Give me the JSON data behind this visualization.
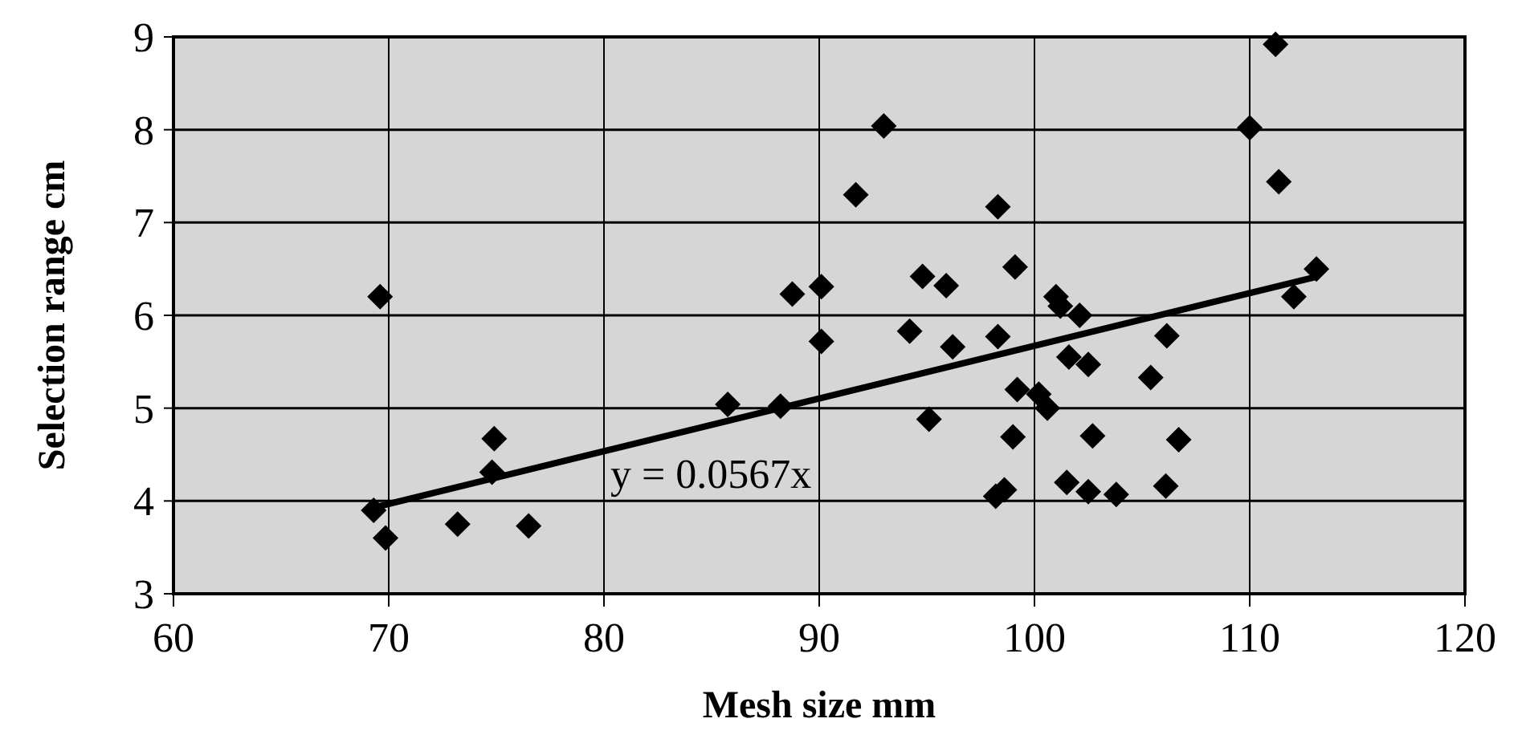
{
  "chart_data": {
    "type": "scatter",
    "xlabel": "Mesh size mm",
    "ylabel": "Selection range cm",
    "xlim": [
      60,
      120
    ],
    "xticks": [
      60,
      70,
      80,
      90,
      100,
      110,
      120
    ],
    "ylim": [
      3,
      9
    ],
    "yticks": [
      3,
      4,
      5,
      6,
      7,
      8,
      9
    ],
    "grid": true,
    "annotations": [
      "y = 0.0567x"
    ],
    "series": [
      {
        "color": "#000000",
        "marker": "diamond",
        "x": [
          69.6,
          69.3,
          69.85,
          73.2,
          74.9,
          74.8,
          76.5,
          85.75,
          88.2,
          88.75,
          90.1,
          90.1,
          91.7,
          93.0,
          94.2,
          94.8,
          95.9,
          95.1,
          96.2,
          98.3,
          99.1,
          98.3,
          99.2,
          100.2,
          100.6,
          99.0,
          98.2,
          98.6,
          101.0,
          101.2,
          101.6,
          101.5,
          111.2,
          110.0,
          111.35,
          113.1,
          112.05,
          102.1,
          106.15,
          102.5,
          105.4,
          102.7,
          106.7,
          102.5,
          103.8,
          106.1
        ],
        "values": [
          6.2,
          3.9,
          3.6,
          3.75,
          4.67,
          4.31,
          3.73,
          5.04,
          5.02,
          6.23,
          6.31,
          5.72,
          7.3,
          8.04,
          5.83,
          6.42,
          6.32,
          4.88,
          5.66,
          7.17,
          6.52,
          5.77,
          5.2,
          5.15,
          5.0,
          4.69,
          4.05,
          4.12,
          6.2,
          6.1,
          5.55,
          4.2,
          8.92,
          8.02,
          7.44,
          6.5,
          6.2,
          6.0,
          5.78,
          5.47,
          5.33,
          4.7,
          4.66,
          4.1,
          4.07,
          4.16
        ]
      },
      {
        "type": "line",
        "color": "#000000",
        "x": [
          69.5,
          113
        ],
        "values": [
          3.94,
          6.41
        ]
      }
    ]
  }
}
